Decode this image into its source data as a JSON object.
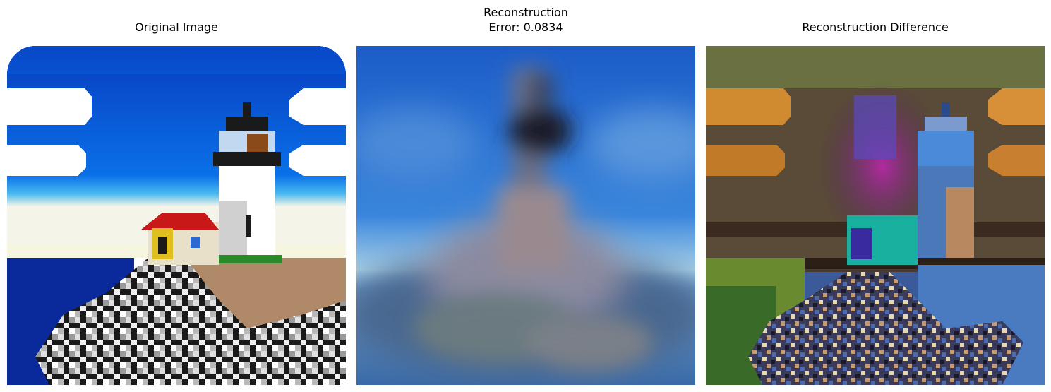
{
  "figure": {
    "panels": [
      {
        "title": "Original Image",
        "image": "lighthouse-original"
      },
      {
        "title": "Reconstruction\nError: 0.0834",
        "image": "lighthouse-reconstruction-blurred"
      },
      {
        "title": "Reconstruction Difference",
        "image": "lighthouse-difference-map"
      }
    ]
  },
  "colors": {
    "sky": "#0a58d0",
    "cloud": "#ffffff",
    "sea": "#0a2a8c",
    "sand": "#b08a68",
    "rock_dark": "#141414",
    "rock_light": "#d8d8d8",
    "roof": "#c81818",
    "lantern": "#1a1a1a"
  }
}
